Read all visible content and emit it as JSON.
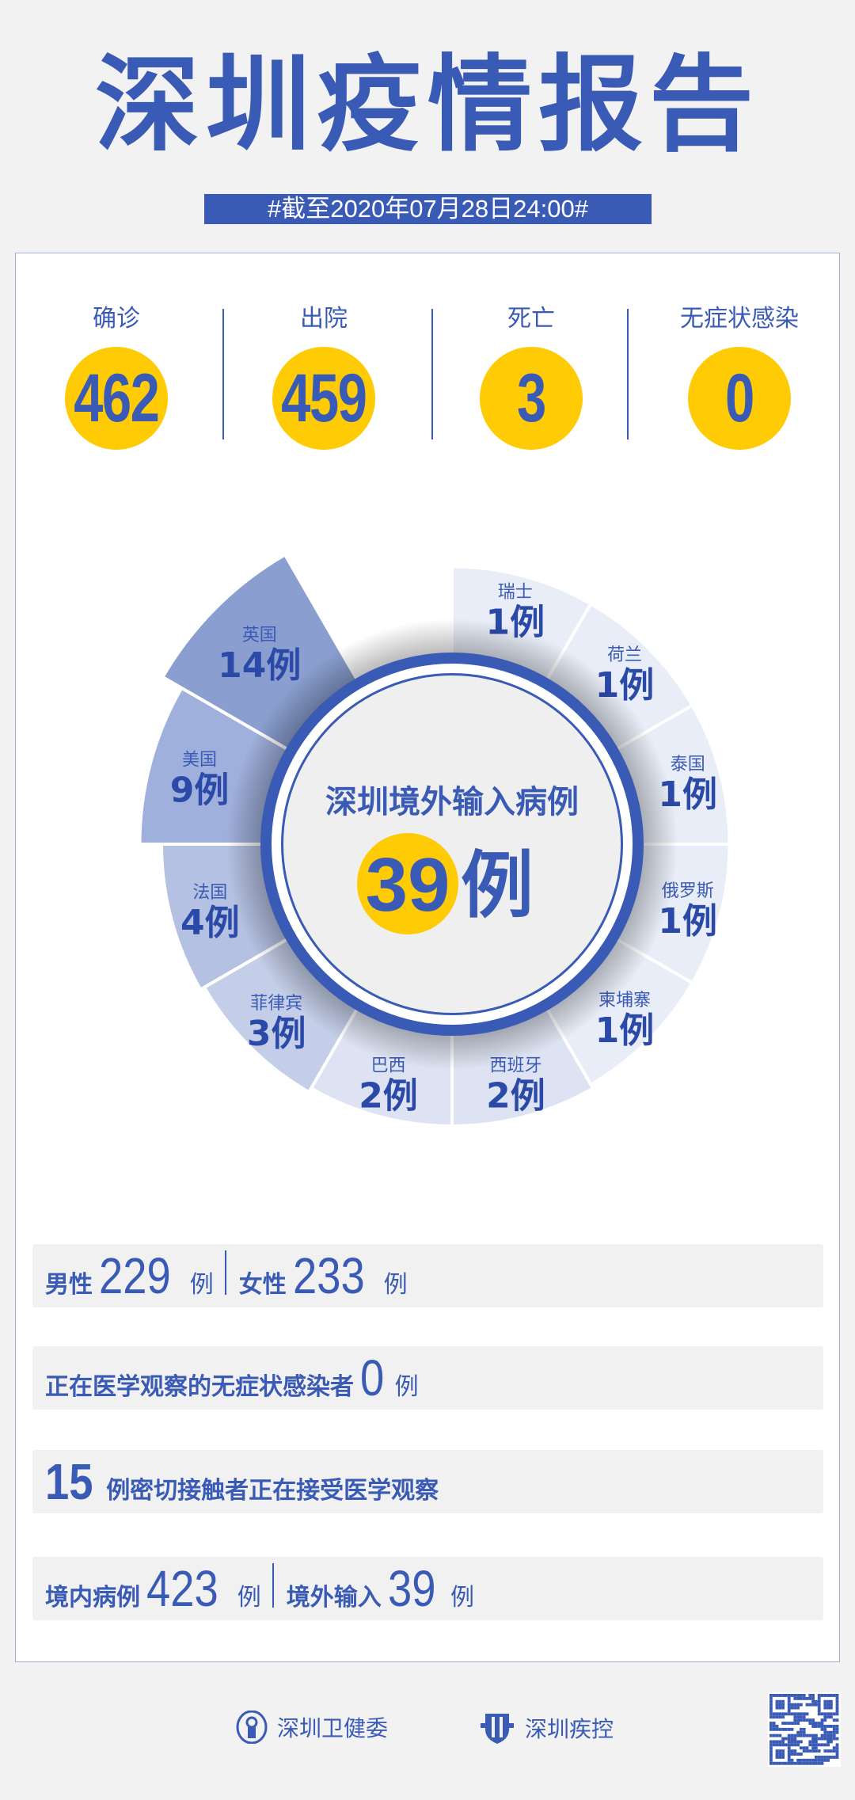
{
  "header": {
    "title": "深圳疫情报告",
    "date_tag": "#截至2020年07月28日24:00#"
  },
  "stats": [
    {
      "label": "确诊",
      "value": "462"
    },
    {
      "label": "出院",
      "value": "459"
    },
    {
      "label": "死亡",
      "value": "3"
    },
    {
      "label": "无症状感染",
      "value": "0"
    }
  ],
  "colors": {
    "brand": "#3a5bb5",
    "accent": "#ffcb05"
  },
  "chart_data": {
    "type": "pie",
    "variant": "nightingale-rose",
    "center_title": "深圳境外输入病例",
    "center_value": "39",
    "center_unit": "例",
    "unit": "例",
    "categories": [
      "瑞士",
      "荷兰",
      "泰国",
      "俄罗斯",
      "柬埔寨",
      "西班牙",
      "巴西",
      "菲律宾",
      "法国",
      "美国",
      "英国"
    ],
    "values": [
      1,
      1,
      1,
      1,
      1,
      2,
      2,
      3,
      4,
      9,
      14
    ],
    "colors": [
      "#e8edf7",
      "#e8edf7",
      "#e8edf7",
      "#e8edf7",
      "#e8edf7",
      "#dde3f2",
      "#dde3f2",
      "#c4cee8",
      "#b5c1e2",
      "#a0b0dc",
      "#8a9fd0"
    ]
  },
  "summary": {
    "gender": {
      "male_label": "男性",
      "male": "229",
      "female_label": "女性",
      "female": "233",
      "unit": "例"
    },
    "asymptomatic": {
      "label": "正在医学观察的无症状感染者",
      "value": "0",
      "unit": "例"
    },
    "contacts": {
      "value": "15",
      "label": "例密切接触者正在接受医学观察"
    },
    "origin": {
      "local_label": "境内病例",
      "local": "423",
      "imported_label": "境外输入",
      "imported": "39",
      "unit": "例"
    }
  },
  "footer": {
    "org1": "深圳卫健委",
    "org2": "深圳疾控"
  }
}
